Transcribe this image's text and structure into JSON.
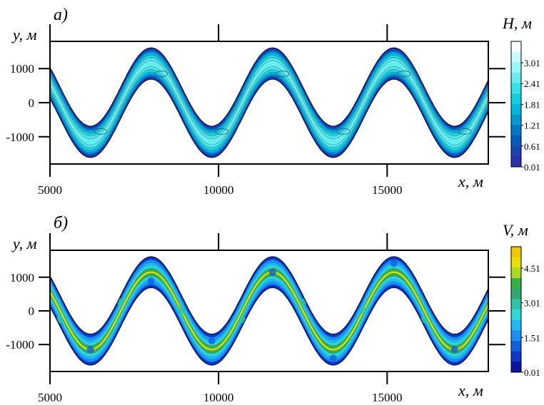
{
  "chart_data": [
    {
      "type": "heatmap",
      "panel_label": "а)",
      "xlabel": "x, м",
      "ylabel": "y, м",
      "xlim": [
        5000,
        18000
      ],
      "ylim": [
        -1800,
        1800
      ],
      "x_ticks": [
        "5000",
        "10000",
        "15000"
      ],
      "y_ticks": [
        "1000",
        "0",
        "-1000"
      ],
      "colorbar": {
        "title": "H, м",
        "labels": [
          "3.01",
          "2.41",
          "1.81",
          "1.21",
          "0.61",
          "0.01"
        ],
        "colors": [
          "#f4ffff",
          "#c8fcfc",
          "#99f7f7",
          "#66eded",
          "#33e2e8",
          "#10d0e0",
          "#00b8dc",
          "#0098d4",
          "#0078c8",
          "#005cbc",
          "#1a44b0",
          "#2a30a8"
        ]
      },
      "channel": {
        "x_start": 5000,
        "x_end": 18000,
        "amplitude": 1150,
        "period": 3600,
        "phase_x": 6200,
        "half_width": 460
      }
    },
    {
      "type": "heatmap",
      "panel_label": "б)",
      "xlabel": "x, м",
      "ylabel": "y, м",
      "xlim": [
        5000,
        18000
      ],
      "ylim": [
        -1800,
        1800
      ],
      "x_ticks": [
        "5000",
        "10000",
        "15000"
      ],
      "y_ticks": [
        "1000",
        "0",
        "-1000"
      ],
      "colorbar": {
        "title": "V, м",
        "labels": [
          "4.51",
          "3.01",
          "1.51",
          "0.01"
        ],
        "colors": [
          "#f0c800",
          "#e8e000",
          "#a8d820",
          "#38b040",
          "#30a870",
          "#2ec4a8",
          "#30d8d8",
          "#20b8f0",
          "#1890f0",
          "#1060e0",
          "#0c38c8",
          "#0a14a0"
        ]
      },
      "channel": {
        "x_start": 5000,
        "x_end": 18000,
        "amplitude": 1150,
        "period": 3600,
        "phase_x": 6200,
        "half_width": 460
      }
    }
  ]
}
